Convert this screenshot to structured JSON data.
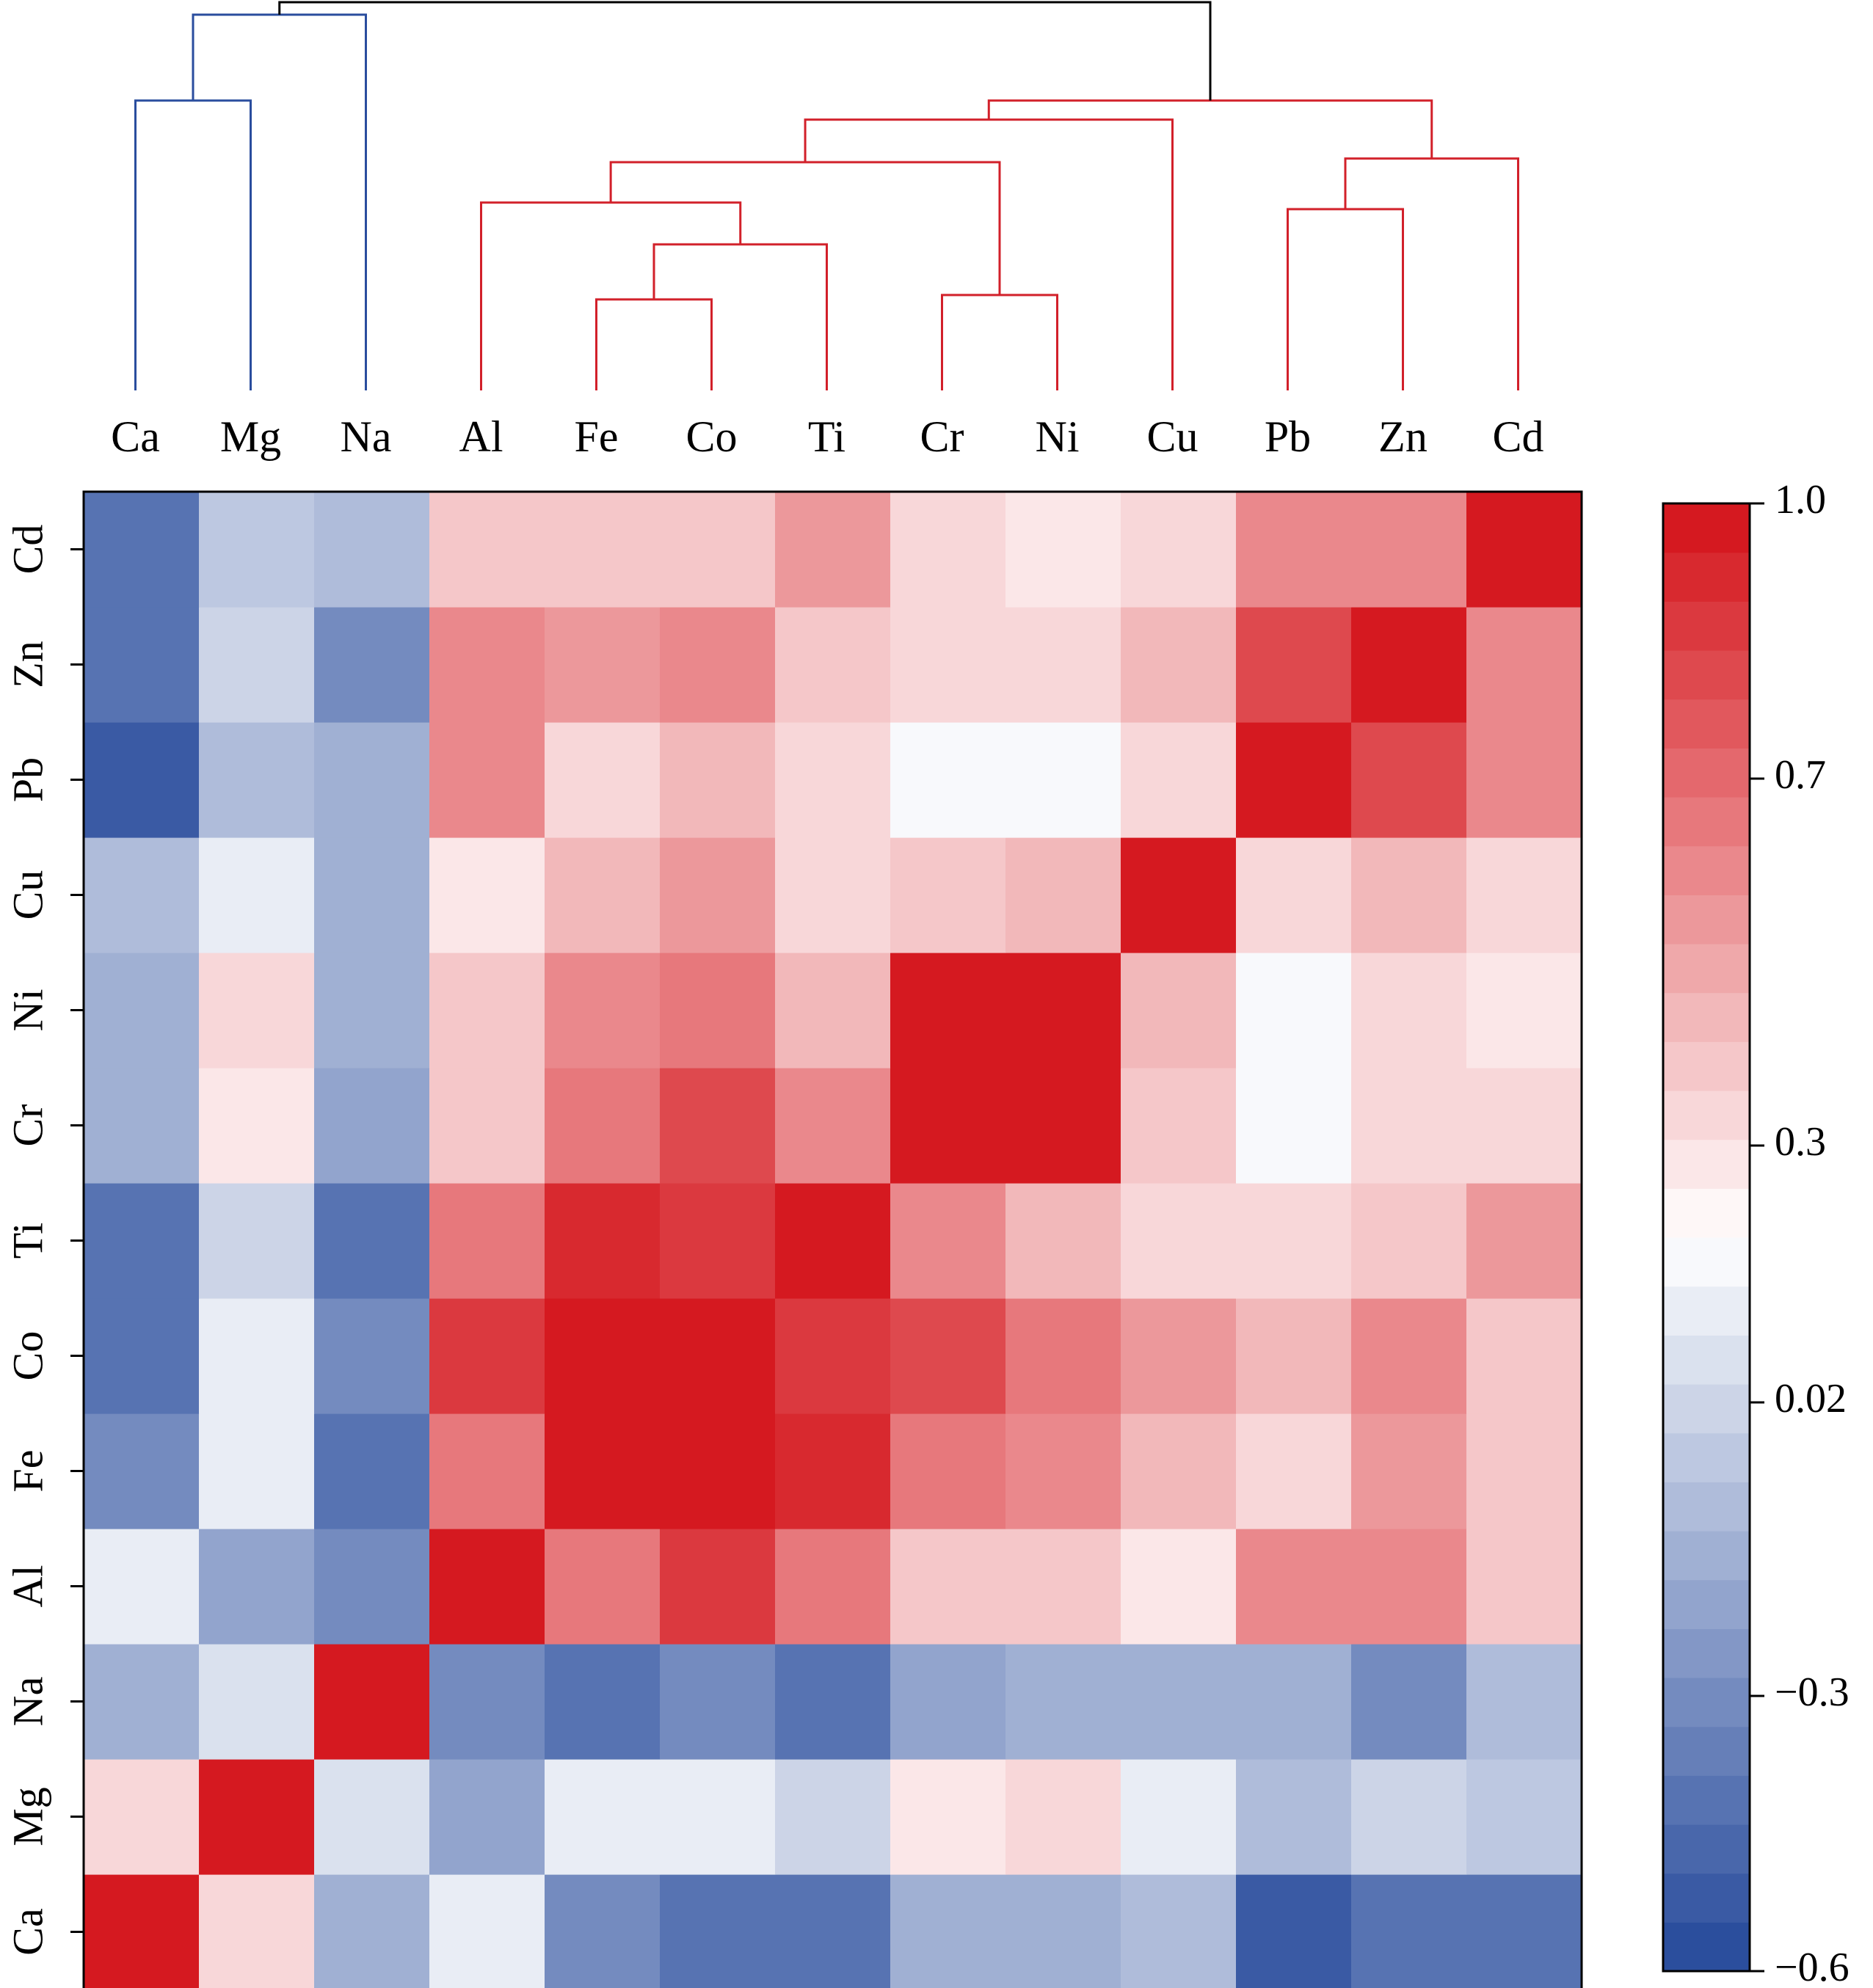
{
  "chart_data": {
    "type": "heatmap",
    "title": "",
    "variables": [
      "Ca",
      "Mg",
      "Na",
      "Al",
      "Fe",
      "Co",
      "Ti",
      "Cr",
      "Ni",
      "Cu",
      "Pb",
      "Zn",
      "Cd"
    ],
    "row_order_bottom_to_top": [
      "Ca",
      "Mg",
      "Na",
      "Al",
      "Fe",
      "Co",
      "Ti",
      "Cr",
      "Ni",
      "Cu",
      "Pb",
      "Zn",
      "Cd"
    ],
    "matrix": [
      [
        1.0,
        0.35,
        -0.15,
        0.1,
        -0.3,
        -0.4,
        -0.4,
        -0.15,
        -0.15,
        -0.1,
        -0.5,
        -0.4,
        -0.4
      ],
      [
        0.35,
        1.0,
        0.05,
        -0.2,
        0.12,
        0.12,
        0.02,
        0.3,
        0.35,
        0.12,
        -0.1,
        0.02,
        -0.05
      ],
      [
        -0.15,
        0.05,
        1.0,
        -0.3,
        -0.4,
        -0.3,
        -0.4,
        -0.2,
        -0.15,
        -0.15,
        -0.15,
        -0.3,
        -0.1
      ],
      [
        0.1,
        -0.2,
        -0.3,
        1.0,
        0.68,
        0.85,
        0.68,
        0.4,
        0.4,
        0.3,
        0.6,
        0.6,
        0.4
      ],
      [
        -0.3,
        0.12,
        -0.4,
        0.68,
        1.0,
        0.95,
        0.9,
        0.68,
        0.62,
        0.45,
        0.35,
        0.55,
        0.4
      ],
      [
        -0.4,
        0.12,
        -0.3,
        0.85,
        0.95,
        1.0,
        0.85,
        0.8,
        0.68,
        0.55,
        0.45,
        0.6,
        0.4
      ],
      [
        -0.4,
        0.02,
        -0.4,
        0.68,
        0.9,
        0.85,
        1.0,
        0.62,
        0.45,
        0.35,
        0.35,
        0.4,
        0.55
      ],
      [
        -0.15,
        0.3,
        -0.2,
        0.4,
        0.68,
        0.8,
        0.62,
        1.0,
        0.95,
        0.4,
        0.18,
        0.35,
        0.35
      ],
      [
        -0.15,
        0.35,
        -0.15,
        0.4,
        0.62,
        0.68,
        0.45,
        0.95,
        1.0,
        0.45,
        0.18,
        0.35,
        0.3
      ],
      [
        -0.1,
        0.12,
        -0.15,
        0.3,
        0.45,
        0.55,
        0.35,
        0.4,
        0.45,
        1.0,
        0.35,
        0.45,
        0.35
      ],
      [
        -0.5,
        -0.1,
        -0.15,
        0.6,
        0.35,
        0.45,
        0.35,
        0.18,
        0.18,
        0.35,
        1.0,
        0.8,
        0.6
      ],
      [
        -0.4,
        0.02,
        -0.3,
        0.6,
        0.55,
        0.6,
        0.4,
        0.35,
        0.35,
        0.45,
        0.8,
        1.0,
        0.6
      ],
      [
        -0.4,
        -0.05,
        -0.1,
        0.4,
        0.4,
        0.4,
        0.55,
        0.35,
        0.3,
        0.35,
        0.6,
        0.6,
        1.0
      ]
    ],
    "colorbar": {
      "range": [
        -0.6,
        1.0
      ],
      "tick_values": [
        -0.6,
        -0.3,
        0.02,
        0.3,
        0.7,
        1.0
      ],
      "tick_labels": [
        "−0.6",
        "−0.3",
        "0.02",
        "0.3",
        "0.7",
        "1.0"
      ],
      "low_color": "#24489a",
      "mid_color": "#ffffff",
      "high_color": "#d41118",
      "mid_value": 0.2,
      "steps": 30
    },
    "dendrogram": {
      "clusters": [
        {
          "name": "cluster-1",
          "color": "#2a4d9e",
          "members": [
            "Ca",
            "Mg",
            "Na"
          ]
        },
        {
          "name": "cluster-2",
          "color": "#d2202a",
          "members": [
            "Al",
            "Fe",
            "Co",
            "Ti",
            "Cr",
            "Ni",
            "Cu",
            "Pb",
            "Zn",
            "Cd"
          ]
        }
      ],
      "root_color": "#000000"
    }
  }
}
